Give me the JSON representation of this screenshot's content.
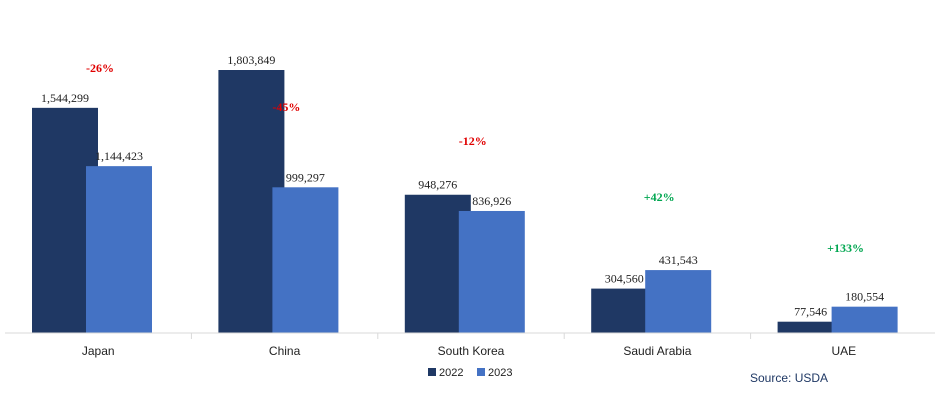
{
  "chart_data": {
    "type": "bar",
    "title": "",
    "xlabel": "",
    "ylabel": "",
    "categories": [
      "Japan",
      "China",
      "South Korea",
      "Saudi Arabia",
      "UAE"
    ],
    "series": [
      {
        "name": "2022",
        "color": "#1f3864",
        "values": [
          1544299,
          1803849,
          948276,
          304560,
          77546
        ],
        "labels": [
          "1,544,299",
          "1,803,849",
          "948,276",
          "304,560",
          "77,546"
        ]
      },
      {
        "name": "2023",
        "color": "#4472c4",
        "values": [
          1144423,
          999297,
          836926,
          431543,
          180554
        ],
        "labels": [
          "1,144,423",
          "999,297",
          "836,926",
          "431,543",
          "180,554"
        ]
      }
    ],
    "annotations": [
      {
        "category": "Japan",
        "text": "-26%",
        "color": "#e00000"
      },
      {
        "category": "China",
        "text": "-45%",
        "color": "#e00000"
      },
      {
        "category": "South Korea",
        "text": "-12%",
        "color": "#e00000"
      },
      {
        "category": "Saudi Arabia",
        "text": "+42%",
        "color": "#00a650"
      },
      {
        "category": "UAE",
        "text": "+133%",
        "color": "#00a650"
      }
    ],
    "ylim": [
      0,
      1803849
    ],
    "grid": false,
    "axes_visible": false,
    "legend_position": "bottom-center"
  },
  "source": {
    "text": "Source: USDA",
    "color": "#1f3864"
  }
}
